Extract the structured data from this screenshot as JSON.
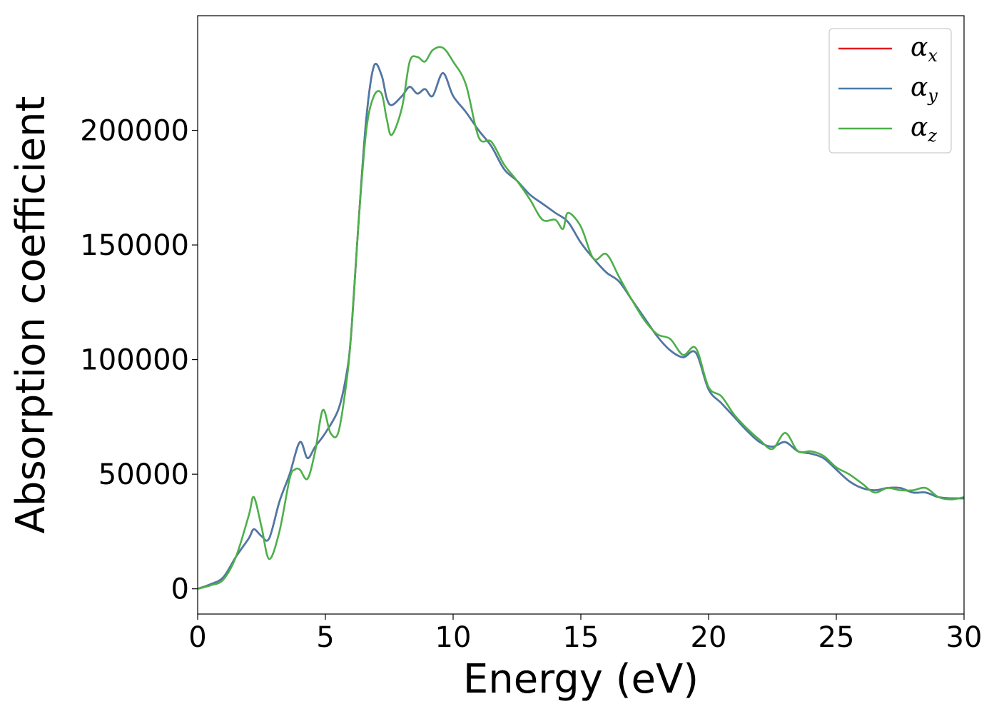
{
  "chart_data": {
    "type": "line",
    "title": "",
    "xlabel": "Energy (eV)",
    "ylabel": "Absorption coefficient",
    "xlim": [
      0,
      30
    ],
    "ylim": [
      -11000,
      250000
    ],
    "xticks": [
      0,
      5,
      10,
      15,
      20,
      25,
      30
    ],
    "xtick_labels": [
      "0",
      "5",
      "10",
      "15",
      "20",
      "25",
      "30"
    ],
    "yticks": [
      0,
      50000,
      100000,
      150000,
      200000
    ],
    "ytick_labels": [
      "0",
      "50000",
      "100000",
      "150000",
      "200000"
    ],
    "grid": false,
    "legend_position": "top-right",
    "series": [
      {
        "name": "α_x",
        "label_base": "α",
        "label_sub": "x",
        "color": "#e41a1c",
        "x": [
          0,
          0.5,
          1,
          1.5,
          2,
          2.2,
          2.5,
          2.8,
          3.2,
          3.6,
          4,
          4.3,
          4.6,
          5,
          5.5,
          5.8,
          6,
          6.3,
          6.6,
          6.9,
          7.2,
          7.4,
          7.6,
          8,
          8.3,
          8.6,
          8.9,
          9.2,
          9.6,
          10,
          10.5,
          11,
          11.5,
          12,
          12.5,
          13,
          13.5,
          14,
          14.5,
          15,
          15.5,
          16,
          16.5,
          17,
          17.5,
          18,
          18.5,
          19,
          19.5,
          20,
          20.5,
          21,
          21.5,
          22,
          22.5,
          23,
          23.5,
          24,
          24.5,
          25,
          25.5,
          26,
          26.5,
          27,
          27.5,
          28,
          28.5,
          29,
          29.5,
          30
        ],
        "y": [
          0,
          2000,
          5000,
          14000,
          22000,
          26000,
          23000,
          22000,
          38000,
          50000,
          64000,
          57000,
          62000,
          68000,
          78000,
          92000,
          110000,
          160000,
          205000,
          228000,
          224000,
          214000,
          211000,
          215000,
          219000,
          216000,
          218000,
          215000,
          225000,
          215000,
          208000,
          200000,
          193000,
          183000,
          178000,
          172000,
          168000,
          164000,
          160000,
          151000,
          144000,
          138000,
          134000,
          126000,
          118000,
          110000,
          104000,
          101000,
          103000,
          87000,
          81000,
          75000,
          69000,
          64000,
          62000,
          64000,
          60000,
          59000,
          57000,
          52000,
          47000,
          44000,
          43000,
          44000,
          44000,
          42000,
          42000,
          40000,
          39500,
          39500
        ]
      },
      {
        "name": "α_y",
        "label_base": "α",
        "label_sub": "y",
        "color": "#4a7aa8",
        "x": [
          0,
          0.5,
          1,
          1.5,
          2,
          2.2,
          2.5,
          2.8,
          3.2,
          3.6,
          4,
          4.3,
          4.6,
          5,
          5.5,
          5.8,
          6,
          6.3,
          6.6,
          6.9,
          7.2,
          7.4,
          7.6,
          8,
          8.3,
          8.6,
          8.9,
          9.2,
          9.6,
          10,
          10.5,
          11,
          11.5,
          12,
          12.5,
          13,
          13.5,
          14,
          14.5,
          15,
          15.5,
          16,
          16.5,
          17,
          17.5,
          18,
          18.5,
          19,
          19.5,
          20,
          20.5,
          21,
          21.5,
          22,
          22.5,
          23,
          23.5,
          24,
          24.5,
          25,
          25.5,
          26,
          26.5,
          27,
          27.5,
          28,
          28.5,
          29,
          29.5,
          30
        ],
        "y": [
          0,
          2000,
          5000,
          14000,
          22000,
          26000,
          23000,
          22000,
          38000,
          50000,
          64000,
          57000,
          62000,
          68000,
          78000,
          92000,
          110000,
          160000,
          205000,
          228000,
          224000,
          214000,
          211000,
          215000,
          219000,
          216000,
          218000,
          215000,
          225000,
          215000,
          208000,
          200000,
          193000,
          183000,
          178000,
          172000,
          168000,
          164000,
          160000,
          151000,
          144000,
          138000,
          134000,
          126000,
          118000,
          110000,
          104000,
          101000,
          103000,
          87000,
          81000,
          75000,
          69000,
          64000,
          62000,
          64000,
          60000,
          59000,
          57000,
          52000,
          47000,
          44000,
          43000,
          44000,
          44000,
          42000,
          42000,
          40000,
          39500,
          39500
        ]
      },
      {
        "name": "α_z",
        "label_base": "α",
        "label_sub": "z",
        "color": "#4daf4a",
        "x": [
          0,
          0.5,
          1,
          1.5,
          2,
          2.2,
          2.5,
          2.8,
          3.2,
          3.6,
          3.8,
          4,
          4.3,
          4.6,
          4.9,
          5.2,
          5.5,
          5.8,
          6,
          6.3,
          6.6,
          6.9,
          7.2,
          7.4,
          7.6,
          8,
          8.3,
          8.6,
          8.9,
          9.2,
          9.6,
          10,
          10.5,
          11,
          11.5,
          12,
          12.5,
          13,
          13.5,
          14,
          14.3,
          14.5,
          15,
          15.5,
          16,
          16.5,
          17,
          17.5,
          18,
          18.5,
          19,
          19.5,
          20,
          20.5,
          21,
          21.5,
          22,
          22.5,
          23,
          23.5,
          24,
          24.5,
          25,
          25.5,
          26,
          26.5,
          27,
          27.5,
          28,
          28.5,
          29,
          29.5,
          30
        ],
        "y": [
          0,
          1500,
          4000,
          14000,
          32000,
          40000,
          27000,
          13000,
          25000,
          48000,
          52000,
          52000,
          48000,
          60000,
          78000,
          68000,
          68000,
          88000,
          110000,
          160000,
          200000,
          215000,
          216000,
          205000,
          198000,
          210000,
          230000,
          232000,
          230000,
          235000,
          236000,
          230000,
          220000,
          197000,
          195000,
          185000,
          178000,
          170000,
          161000,
          161000,
          157000,
          164000,
          158000,
          144000,
          146000,
          136000,
          126000,
          117000,
          111000,
          109000,
          102000,
          105000,
          88000,
          84000,
          76000,
          70000,
          65000,
          61000,
          68000,
          60000,
          60000,
          58000,
          53000,
          50000,
          46000,
          42000,
          44000,
          43000,
          43000,
          44000,
          40000,
          39000,
          40000
        ]
      }
    ]
  }
}
